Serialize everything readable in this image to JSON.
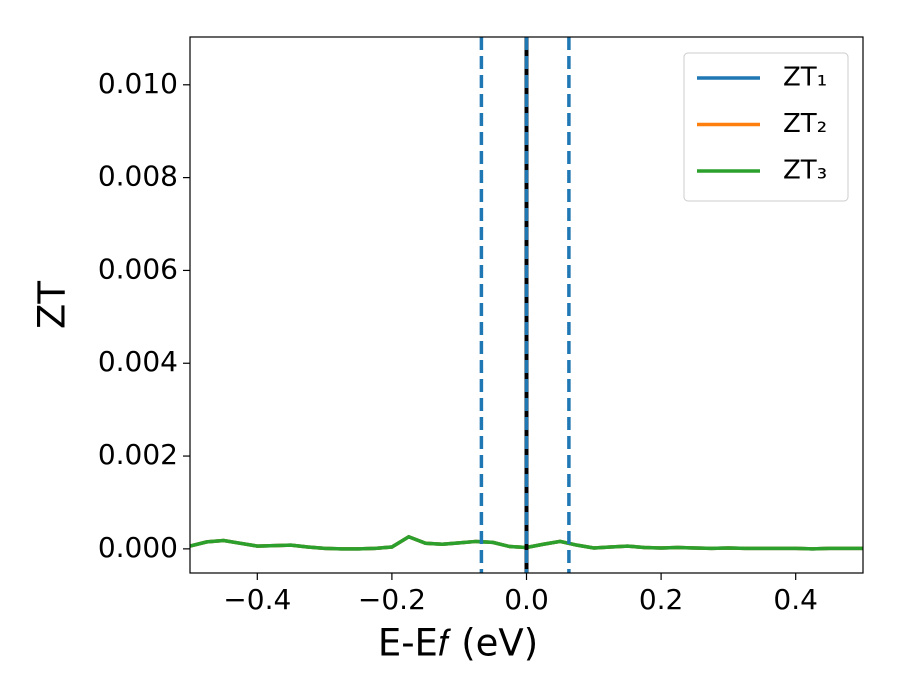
{
  "chart_data": {
    "type": "line",
    "xlabel": "E-E𝑓 (eV)",
    "ylabel": "ZT",
    "x": [
      -0.5,
      -0.475,
      -0.45,
      -0.425,
      -0.4,
      -0.375,
      -0.35,
      -0.325,
      -0.3,
      -0.275,
      -0.25,
      -0.225,
      -0.2,
      -0.175,
      -0.15,
      -0.125,
      -0.1,
      -0.075,
      -0.05,
      -0.025,
      0,
      0.025,
      0.05,
      0.075,
      0.1,
      0.125,
      0.15,
      0.175,
      0.2,
      0.225,
      0.25,
      0.275,
      0.3,
      0.325,
      0.35,
      0.375,
      0.4,
      0.425,
      0.45,
      0.475,
      0.5
    ],
    "series": [
      {
        "name": "ZT₁",
        "color": "#1f77b4",
        "values": [
          6e-05,
          0.00015,
          0.00018,
          0.00012,
          6e-05,
          7e-05,
          8e-05,
          4e-05,
          1e-05,
          0,
          0,
          1e-05,
          4e-05,
          0.00026,
          0.00012,
          0.0001,
          0.00013,
          0.00016,
          0.00014,
          5e-05,
          3e-05,
          0.0001,
          0.00016,
          8e-05,
          2e-05,
          4e-05,
          6e-05,
          3e-05,
          2e-05,
          3e-05,
          2e-05,
          1e-05,
          2e-05,
          1e-05,
          1e-05,
          1e-05,
          1e-05,
          0,
          1e-05,
          1e-05,
          1e-05
        ]
      },
      {
        "name": "ZT₂",
        "color": "#ff7f0e",
        "values": [
          6e-05,
          0.00015,
          0.00018,
          0.00012,
          6e-05,
          7e-05,
          8e-05,
          4e-05,
          1e-05,
          0,
          0,
          1e-05,
          4e-05,
          0.00026,
          0.00012,
          0.0001,
          0.00013,
          0.00016,
          0.00014,
          5e-05,
          3e-05,
          0.0001,
          0.00016,
          8e-05,
          2e-05,
          4e-05,
          6e-05,
          3e-05,
          2e-05,
          3e-05,
          2e-05,
          1e-05,
          2e-05,
          1e-05,
          1e-05,
          1e-05,
          1e-05,
          0,
          1e-05,
          1e-05,
          1e-05
        ]
      },
      {
        "name": "ZT₃",
        "color": "#2ca02c",
        "values": [
          6e-05,
          0.00015,
          0.00018,
          0.00012,
          6e-05,
          7e-05,
          8e-05,
          4e-05,
          1e-05,
          0,
          0,
          1e-05,
          4e-05,
          0.00026,
          0.00012,
          0.0001,
          0.00013,
          0.00016,
          0.00014,
          5e-05,
          3e-05,
          0.0001,
          0.00016,
          8e-05,
          2e-05,
          4e-05,
          6e-05,
          3e-05,
          2e-05,
          3e-05,
          2e-05,
          1e-05,
          2e-05,
          1e-05,
          1e-05,
          1e-05,
          1e-05,
          0,
          1e-05,
          1e-05,
          1e-05
        ]
      }
    ],
    "vlines": [
      {
        "x": 0,
        "color": "#000000",
        "style": "solid"
      },
      {
        "x": -0.067,
        "color": "#1f77b4",
        "style": "dashed"
      },
      {
        "x": 0,
        "color": "#1f77b4",
        "style": "dashed"
      },
      {
        "x": 0.063,
        "color": "#1f77b4",
        "style": "dashed"
      }
    ],
    "xlim": [
      -0.5,
      0.5
    ],
    "xticks": [
      {
        "value": -0.4,
        "label": "−0.4"
      },
      {
        "value": -0.2,
        "label": "−0.2"
      },
      {
        "value": 0,
        "label": "0.0"
      },
      0.2,
      0.4
    ],
    "ylim": [
      -0.00052,
      0.01103
    ],
    "yticks": [
      {
        "value": 0,
        "label": "0.000"
      },
      {
        "value": 0.002,
        "label": "0.002"
      },
      {
        "value": 0.004,
        "label": "0.004"
      },
      {
        "value": 0.006,
        "label": "0.006"
      },
      {
        "value": 0.008,
        "label": "0.008"
      },
      {
        "value": 0.01,
        "label": "0.010"
      }
    ],
    "grid": false,
    "legend": "upper right"
  }
}
